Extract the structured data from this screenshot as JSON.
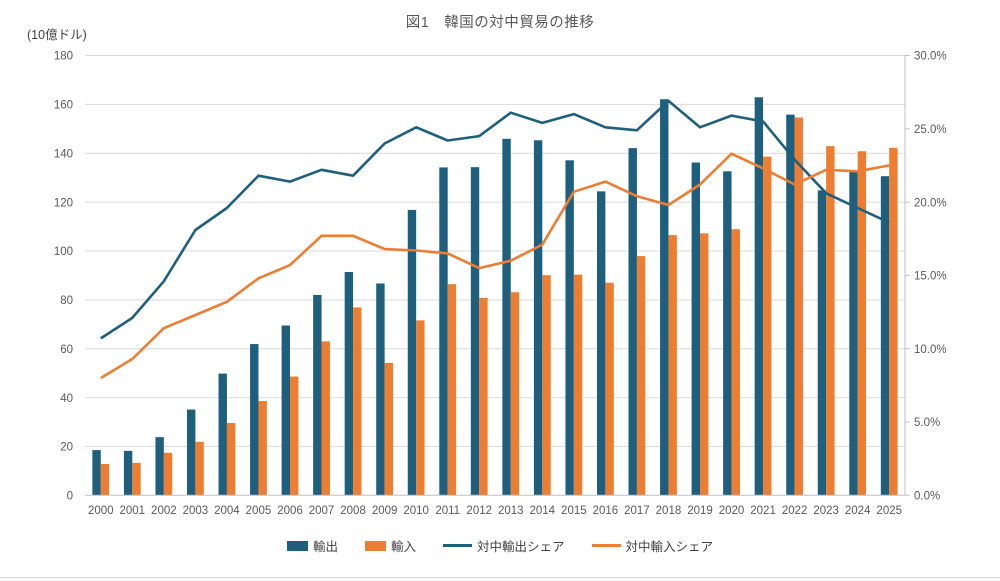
{
  "title": "図1　韓国の対中貿易の推移",
  "left_axis": {
    "unit_label": "(10億ドル)",
    "ticks": [
      "0",
      "20",
      "40",
      "60",
      "80",
      "100",
      "120",
      "140",
      "160",
      "180"
    ]
  },
  "right_axis": {
    "ticks": [
      "0.0%",
      "5.0%",
      "10.0%",
      "15.0%",
      "20.0%",
      "25.0%",
      "30.0%"
    ]
  },
  "legend": [
    {
      "label": "輸出",
      "type": "bar"
    },
    {
      "label": "輸入",
      "type": "bar"
    },
    {
      "label": "対中輸出シェア",
      "type": "line"
    },
    {
      "label": "対中輸入シェア",
      "type": "line"
    }
  ],
  "colors": {
    "export_bar": "#1e5f7e",
    "import_bar": "#ed7d31",
    "export_share_line": "#1e5f7e",
    "import_share_line": "#ed7d31",
    "gridline": "#d9d9d9",
    "axis_line": "#bfbfbf",
    "tick_text": "#595959",
    "title_text": "#595959"
  },
  "chart_data": {
    "type": "bar",
    "subtype": "grouped bars with two overlay lines (combo chart)",
    "title": "図1　韓国の対中貿易の推移",
    "xlabel": "",
    "ylabel_left": "(10億ドル)",
    "ylabel_right": "%",
    "left_ylim": [
      0,
      180
    ],
    "right_ylim_pct": [
      0,
      30
    ],
    "grid": true,
    "legend_position": "bottom",
    "categories": [
      "2000",
      "2001",
      "2002",
      "2003",
      "2004",
      "2005",
      "2006",
      "2007",
      "2008",
      "2009",
      "2010",
      "2011",
      "2012",
      "2013",
      "2014",
      "2015",
      "2016",
      "2017",
      "2018",
      "2019",
      "2020",
      "2021",
      "2022",
      "2023",
      "2024",
      "2025"
    ],
    "series": [
      {
        "name": "輸出",
        "type": "bar",
        "axis": "left",
        "unit": "10億ドル",
        "values": [
          18.5,
          18.2,
          23.8,
          35.1,
          49.8,
          61.9,
          69.5,
          82.0,
          91.4,
          86.7,
          116.8,
          134.2,
          134.3,
          145.9,
          145.3,
          137.1,
          124.4,
          142.1,
          162.1,
          136.2,
          132.6,
          162.9,
          155.8,
          124.8,
          133.0,
          130.6
        ]
      },
      {
        "name": "輸入",
        "type": "bar",
        "axis": "left",
        "unit": "10億ドル",
        "values": [
          12.8,
          13.3,
          17.4,
          21.9,
          29.6,
          38.6,
          48.6,
          63.0,
          76.9,
          54.2,
          71.6,
          86.4,
          80.8,
          83.1,
          90.1,
          90.3,
          87.0,
          97.9,
          106.5,
          107.2,
          108.9,
          138.6,
          154.6,
          142.9,
          140.8,
          142.2
        ]
      },
      {
        "name": "対中輸出シェア",
        "type": "line",
        "axis": "right",
        "unit": "%",
        "values": [
          10.7,
          12.1,
          14.6,
          18.1,
          19.6,
          21.8,
          21.4,
          22.2,
          21.8,
          24.0,
          25.1,
          24.2,
          24.5,
          26.1,
          25.4,
          26.0,
          25.1,
          24.9,
          26.9,
          25.1,
          25.9,
          25.5,
          22.9,
          20.6,
          19.6,
          18.6
        ]
      },
      {
        "name": "対中輸入シェア",
        "type": "line",
        "axis": "right",
        "unit": "%",
        "values": [
          8.0,
          9.3,
          11.4,
          12.3,
          13.2,
          14.8,
          15.7,
          17.7,
          17.7,
          16.8,
          16.7,
          16.5,
          15.5,
          16.0,
          17.1,
          20.7,
          21.4,
          20.4,
          19.8,
          21.2,
          23.3,
          22.3,
          21.2,
          22.2,
          22.1,
          22.5
        ]
      }
    ]
  }
}
